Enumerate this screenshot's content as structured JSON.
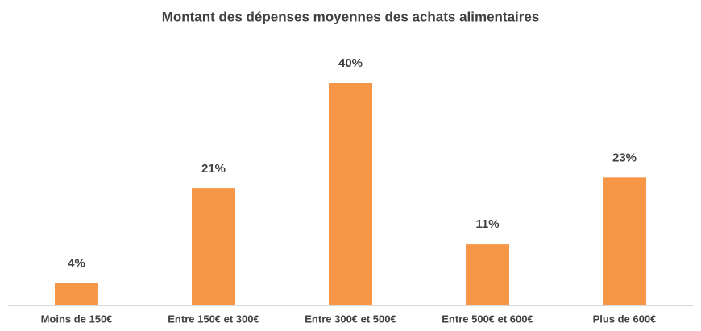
{
  "chart_data": {
    "type": "bar",
    "title": "Montant des dépenses moyennes des achats alimentaires",
    "categories": [
      "Moins de 150€",
      "Entre 150€ et 300€",
      "Entre 300€ et 500€",
      "Entre 500€ et 600€",
      "Plus de 600€"
    ],
    "values": [
      4,
      21,
      40,
      11,
      23
    ],
    "value_labels": [
      "4%",
      "21%",
      "40%",
      "11%",
      "23%"
    ],
    "color": "#f79646"
  }
}
